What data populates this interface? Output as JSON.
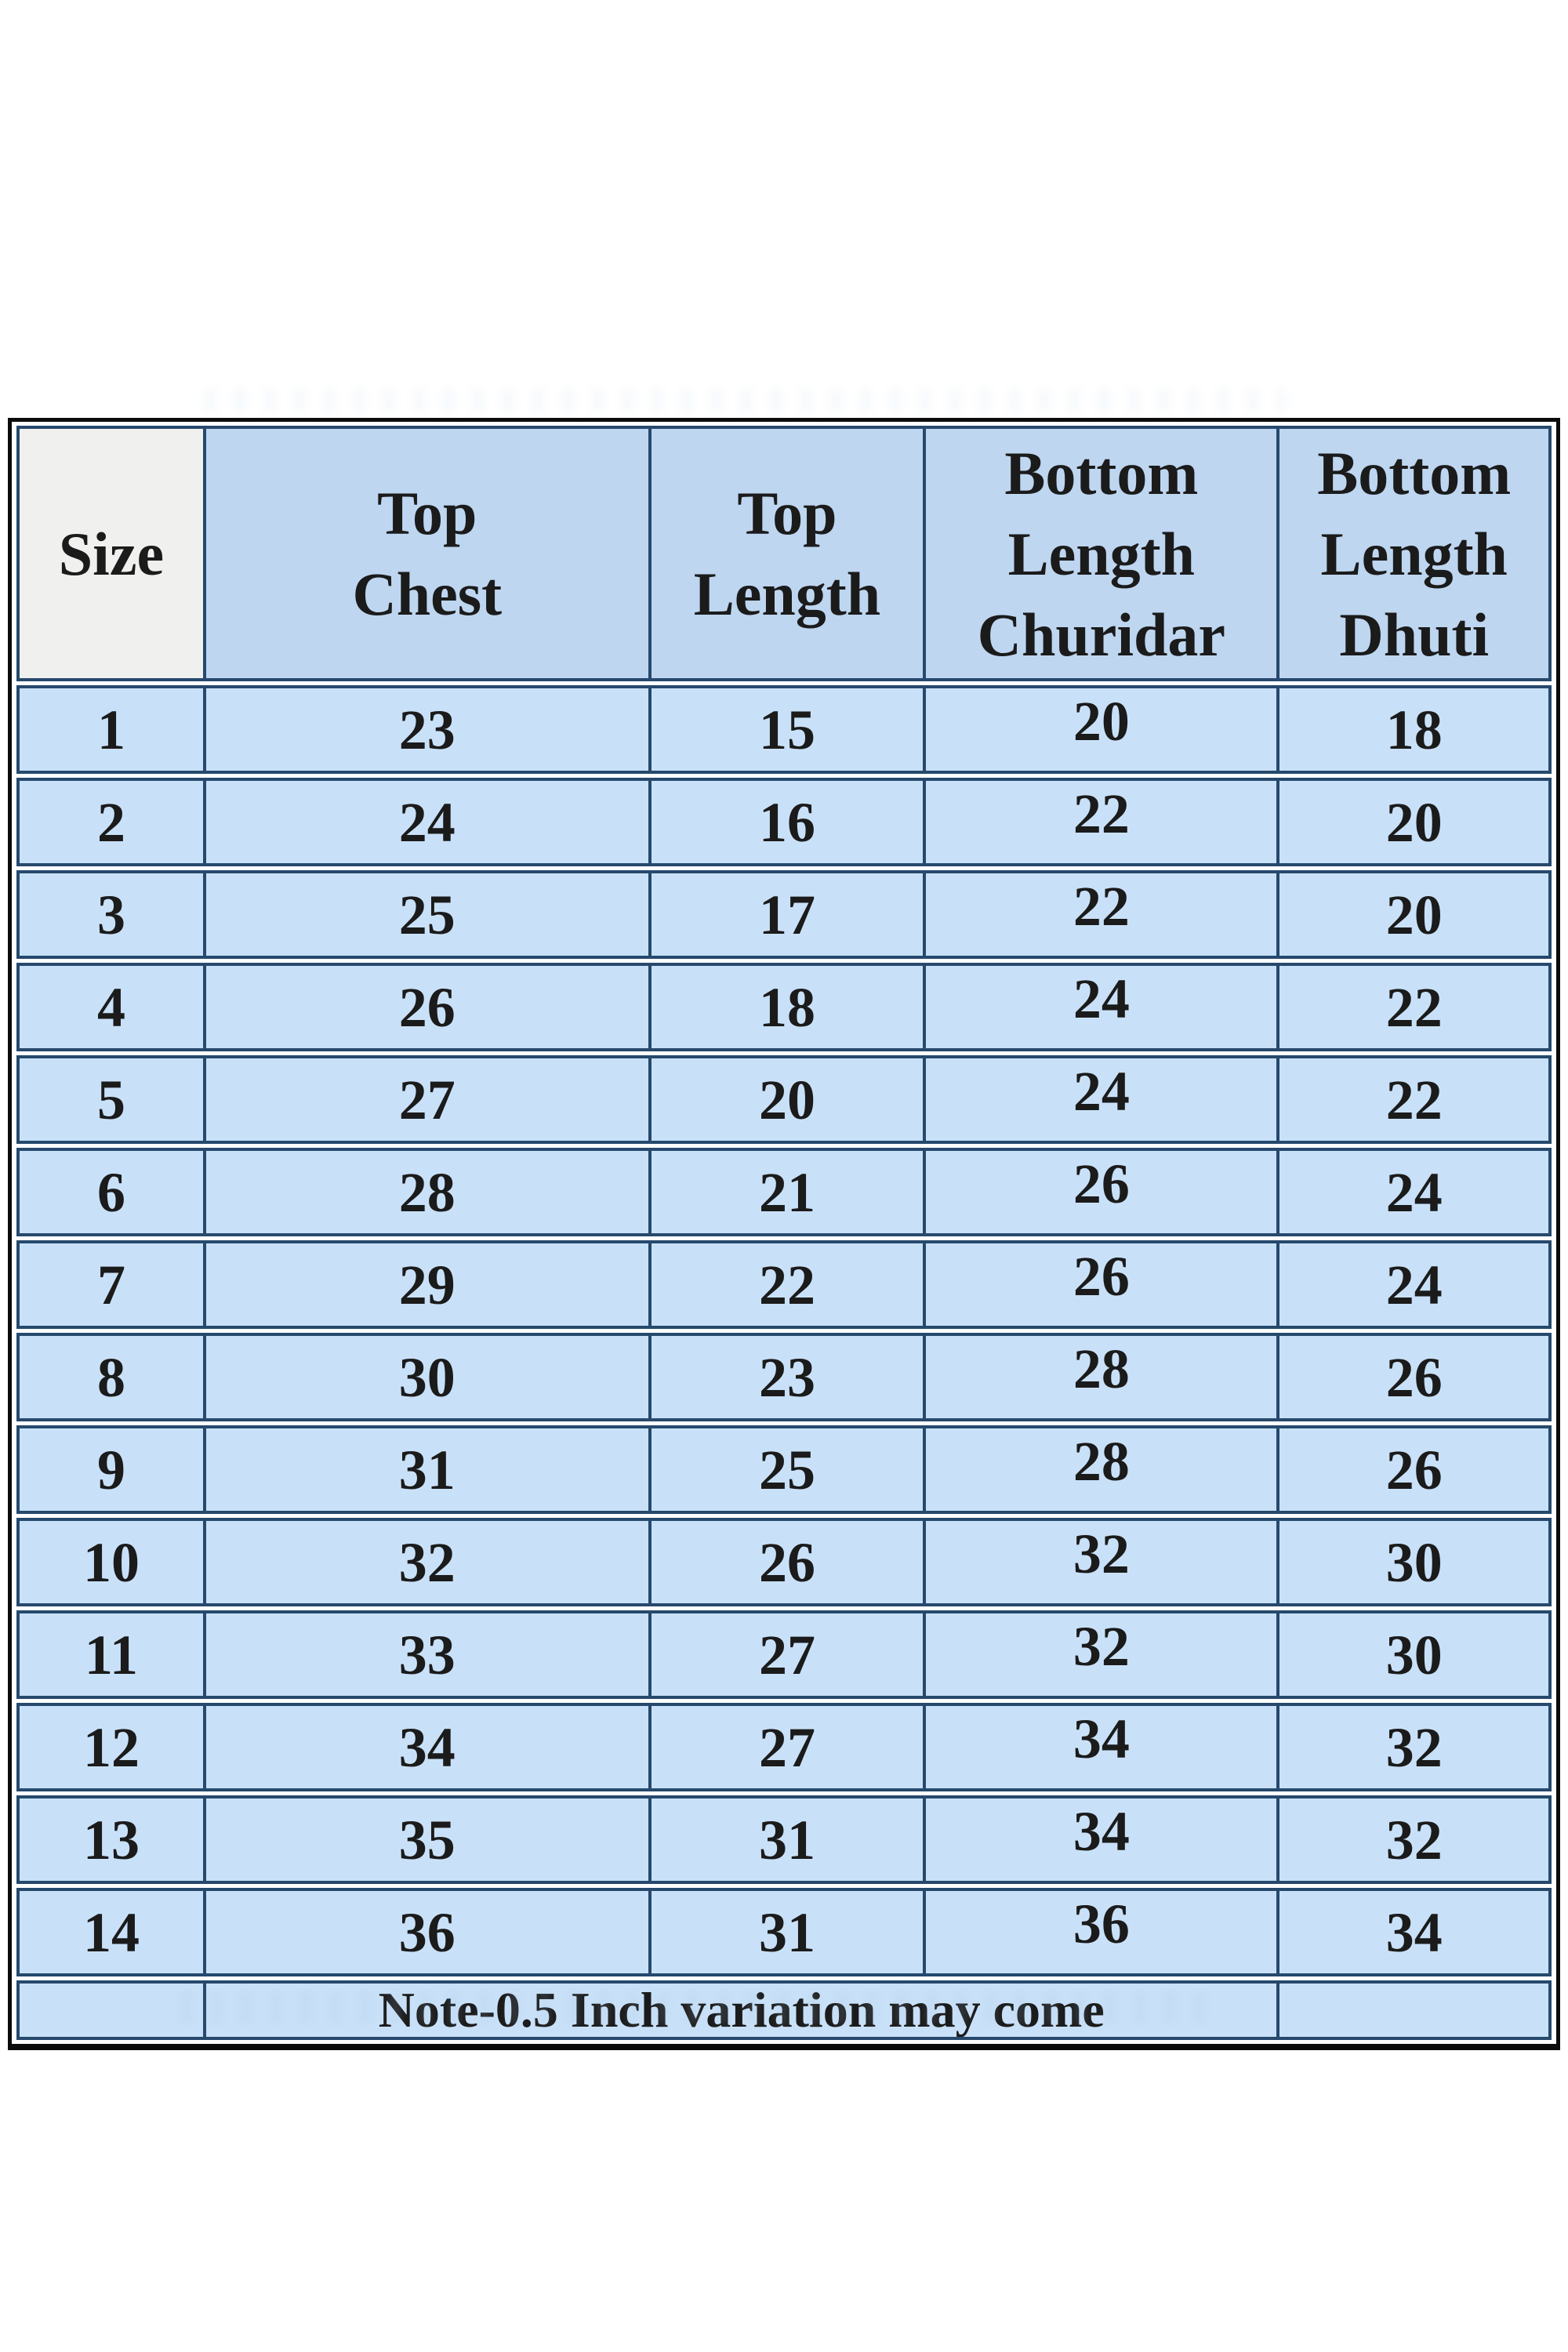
{
  "colors": {
    "header_bg": "#bed6f0",
    "size_header_bg": "#f0f0ee",
    "row_bg": "#c9e1f8",
    "grid_line": "#26496d",
    "outer_border": "#0c0c0c",
    "text": "#1b1b1b",
    "page_bg": "#ffffff"
  },
  "chart_data": {
    "type": "table",
    "title": "",
    "columns": [
      "Size",
      "Top Chest",
      "Top Length",
      "Bottom Length Churidar",
      "Bottom Length Dhuti"
    ],
    "rows": [
      [
        "1",
        "23",
        "15",
        "20",
        "18"
      ],
      [
        "2",
        "24",
        "16",
        "22",
        "20"
      ],
      [
        "3",
        "25",
        "17",
        "22",
        "20"
      ],
      [
        "4",
        "26",
        "18",
        "24",
        "22"
      ],
      [
        "5",
        "27",
        "20",
        "24",
        "22"
      ],
      [
        "6",
        "28",
        "21",
        "26",
        "24"
      ],
      [
        "7",
        "29",
        "22",
        "26",
        "24"
      ],
      [
        "8",
        "30",
        "23",
        "28",
        "26"
      ],
      [
        "9",
        "31",
        "25",
        "28",
        "26"
      ],
      [
        "10",
        "32",
        "26",
        "32",
        "30"
      ],
      [
        "11",
        "33",
        "27",
        "32",
        "30"
      ],
      [
        "12",
        "34",
        "27",
        "34",
        "32"
      ],
      [
        "13",
        "35",
        "31",
        "34",
        "32"
      ],
      [
        "14",
        "36",
        "31",
        "36",
        "34"
      ]
    ],
    "note": "Note-0.5 Inch variation may come",
    "layout_hints": {
      "grid": "double navy rules between rows, single navy rules between columns",
      "outer_frame": "thick black border with white inset gap",
      "units": "inches (implied by note)"
    }
  }
}
